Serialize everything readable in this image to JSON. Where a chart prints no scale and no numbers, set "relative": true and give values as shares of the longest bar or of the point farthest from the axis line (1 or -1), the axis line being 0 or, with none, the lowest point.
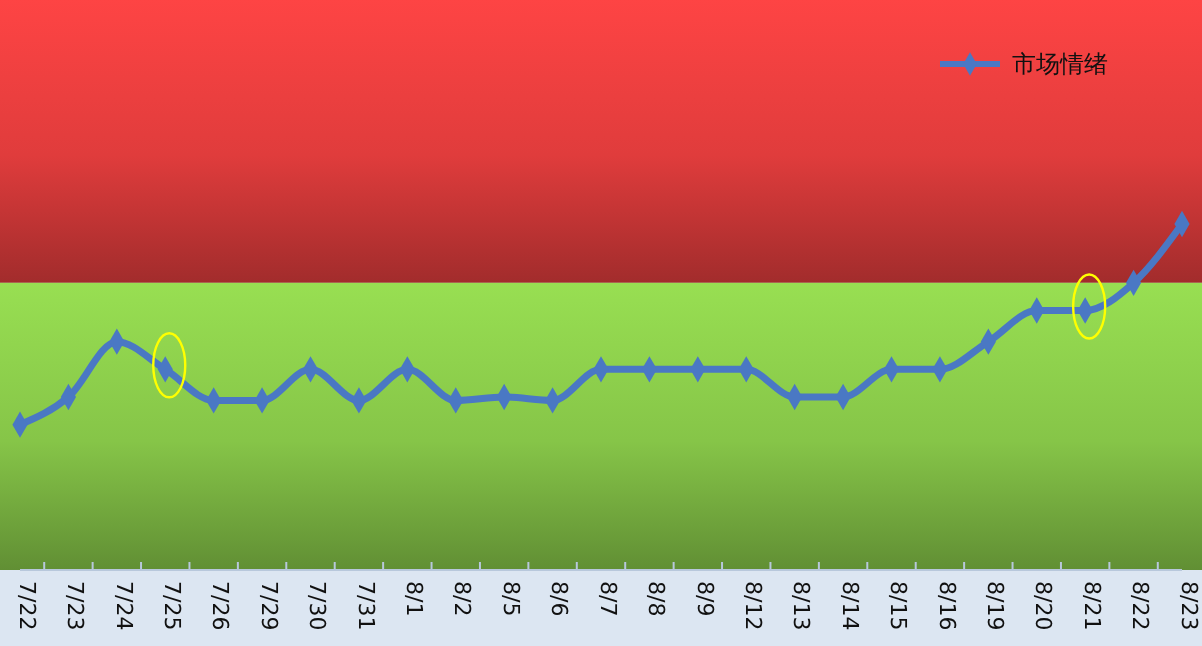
{
  "chart_data": {
    "type": "line",
    "relative": true,
    "categories": [
      "7/22",
      "7/23",
      "7/24",
      "7/25",
      "7/26",
      "7/29",
      "7/30",
      "7/31",
      "8/1",
      "8/2",
      "8/5",
      "8/6",
      "8/7",
      "8/8",
      "8/9",
      "8/12",
      "8/13",
      "8/14",
      "8/15",
      "8/16",
      "8/19",
      "8/20",
      "8/21",
      "8/22",
      "8/23"
    ],
    "series": [
      {
        "name": "市场情绪",
        "color": "#4a78c4",
        "values": [
          0.42,
          0.5,
          0.66,
          0.58,
          0.49,
          0.49,
          0.58,
          0.49,
          0.58,
          0.49,
          0.5,
          0.49,
          0.58,
          0.58,
          0.58,
          0.58,
          0.5,
          0.5,
          0.58,
          0.58,
          0.66,
          0.75,
          0.75,
          0.83,
          1
        ]
      }
    ],
    "bands": [
      {
        "axis": "y",
        "from": 0.83,
        "to": 1.65,
        "color": "#e03c3c"
      },
      {
        "axis": "y",
        "from": 0,
        "to": 0.83,
        "color": "#86c548"
      }
    ],
    "marker": "diamond",
    "line_style": "solid",
    "legend": "top right"
  }
}
